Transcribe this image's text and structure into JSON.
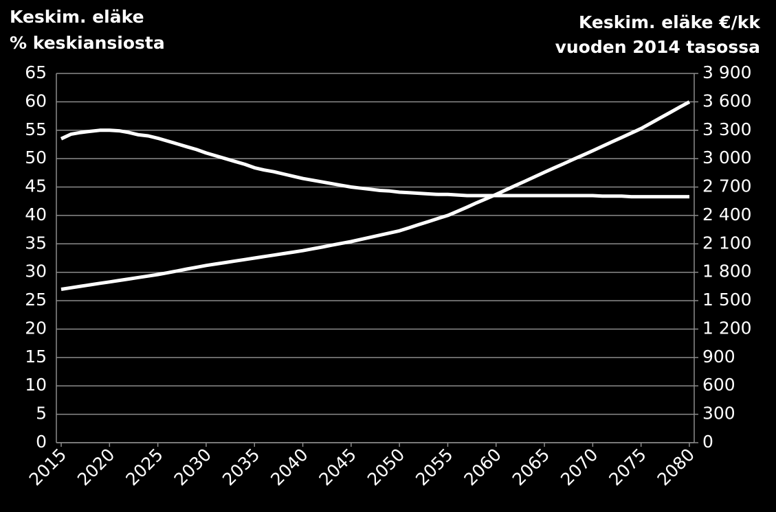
{
  "chart_data": {
    "type": "line",
    "y_title": [
      "Keskim. eläke",
      "% keskiansiosta"
    ],
    "y2_title": [
      "Keskim. eläke €/kk",
      "vuoden 2014 tasossa"
    ],
    "x": [
      2015,
      2016,
      2017,
      2018,
      2019,
      2020,
      2021,
      2022,
      2023,
      2024,
      2025,
      2026,
      2027,
      2028,
      2029,
      2030,
      2031,
      2032,
      2033,
      2034,
      2035,
      2036,
      2037,
      2038,
      2039,
      2040,
      2041,
      2042,
      2043,
      2044,
      2045,
      2046,
      2047,
      2048,
      2049,
      2050,
      2051,
      2052,
      2053,
      2054,
      2055,
      2056,
      2057,
      2058,
      2059,
      2060,
      2061,
      2062,
      2063,
      2064,
      2065,
      2066,
      2067,
      2068,
      2069,
      2070,
      2071,
      2072,
      2073,
      2074,
      2075,
      2076,
      2077,
      2078,
      2079,
      2080
    ],
    "xlim": [
      2014.5,
      2080.5
    ],
    "xticks": [
      2015,
      2020,
      2025,
      2030,
      2035,
      2040,
      2045,
      2050,
      2055,
      2060,
      2065,
      2070,
      2075,
      2080
    ],
    "ylim": [
      0,
      65
    ],
    "yticks": [
      0,
      5,
      10,
      15,
      20,
      25,
      30,
      35,
      40,
      45,
      50,
      55,
      60,
      65
    ],
    "y2lim": [
      0,
      3900
    ],
    "y2ticks": [
      0,
      300,
      600,
      900,
      {
        "value": 1200,
        "label": "1 200"
      },
      {
        "value": 1500,
        "label": "1 500"
      },
      {
        "value": 1800,
        "label": "1 800"
      },
      {
        "value": 2100,
        "label": "2 100"
      },
      {
        "value": 2400,
        "label": "2 400"
      },
      {
        "value": 2700,
        "label": "2 700"
      },
      {
        "value": 3000,
        "label": "3 000"
      },
      {
        "value": 3300,
        "label": "3 300"
      },
      {
        "value": 3600,
        "label": "3 600"
      },
      {
        "value": 3900,
        "label": "3 900"
      }
    ],
    "grid": true,
    "series": [
      {
        "color": "#ffffff",
        "axis": "y",
        "values": [
          53.5,
          54.3,
          54.6,
          54.8,
          55.0,
          55.0,
          54.9,
          54.6,
          54.2,
          54.0,
          53.6,
          53.1,
          52.6,
          52.1,
          51.6,
          51.0,
          50.5,
          50.0,
          49.5,
          49.0,
          48.4,
          48.0,
          47.7,
          47.3,
          46.9,
          46.5,
          46.2,
          45.9,
          45.6,
          45.3,
          45.0,
          44.8,
          44.6,
          44.4,
          44.3,
          44.1,
          44.0,
          43.9,
          43.8,
          43.7,
          43.7,
          43.6,
          43.5,
          43.5,
          43.5,
          43.5,
          43.5,
          43.5,
          43.5,
          43.5,
          43.5,
          43.5,
          43.5,
          43.5,
          43.5,
          43.5,
          43.4,
          43.4,
          43.4,
          43.3,
          43.3,
          43.3,
          43.3,
          43.3,
          43.3,
          43.3
        ]
      },
      {
        "color": "#ffffff",
        "axis": "y2",
        "values": [
          1620,
          1636,
          1652,
          1667,
          1683,
          1698,
          1714,
          1729,
          1745,
          1760,
          1776,
          1795,
          1814,
          1834,
          1853,
          1872,
          1888,
          1903,
          1919,
          1934,
          1950,
          1966,
          1981,
          1997,
          2012,
          2028,
          2047,
          2066,
          2086,
          2105,
          2124,
          2147,
          2170,
          2192,
          2215,
          2238,
          2270,
          2303,
          2335,
          2368,
          2400,
          2444,
          2488,
          2534,
          2578,
          2622,
          2669,
          2716,
          2762,
          2809,
          2856,
          2902,
          2947,
          2993,
          3038,
          3084,
          3131,
          3178,
          3224,
          3271,
          3318,
          3374,
          3431,
          3487,
          3544,
          3600
        ]
      }
    ]
  }
}
